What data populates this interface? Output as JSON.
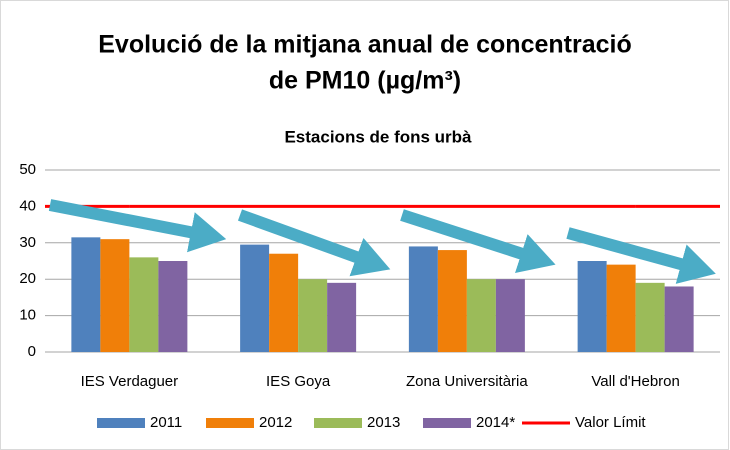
{
  "chart_data": {
    "type": "bar",
    "title": [
      "Evolució de la mitjana anual de concentració",
      "de PM10  (µg/m³)"
    ],
    "subtitle": "Estacions de fons urbà",
    "categories": [
      "IES Verdaguer",
      "IES Goya",
      "Zona Universitària",
      "Vall d'Hebron"
    ],
    "series": [
      {
        "name": "2011",
        "color": "#4f81bd",
        "values": [
          31.5,
          29.5,
          29,
          25
        ]
      },
      {
        "name": "2012",
        "color": "#f07f09",
        "values": [
          31,
          27,
          28,
          24
        ]
      },
      {
        "name": "2013",
        "color": "#9bbb59",
        "values": [
          26,
          20,
          20,
          19
        ]
      },
      {
        "name": "2014*",
        "color": "#8064a2",
        "values": [
          25,
          19,
          20,
          18
        ]
      },
      {
        "name": "Valor Límit",
        "color": "#ff0000",
        "type": "line",
        "values": [
          40,
          40,
          40,
          40
        ]
      }
    ],
    "ylim": [
      0,
      50
    ],
    "yticks": [
      0,
      10,
      20,
      30,
      40,
      50
    ],
    "grid": true,
    "legend": "bottom"
  }
}
